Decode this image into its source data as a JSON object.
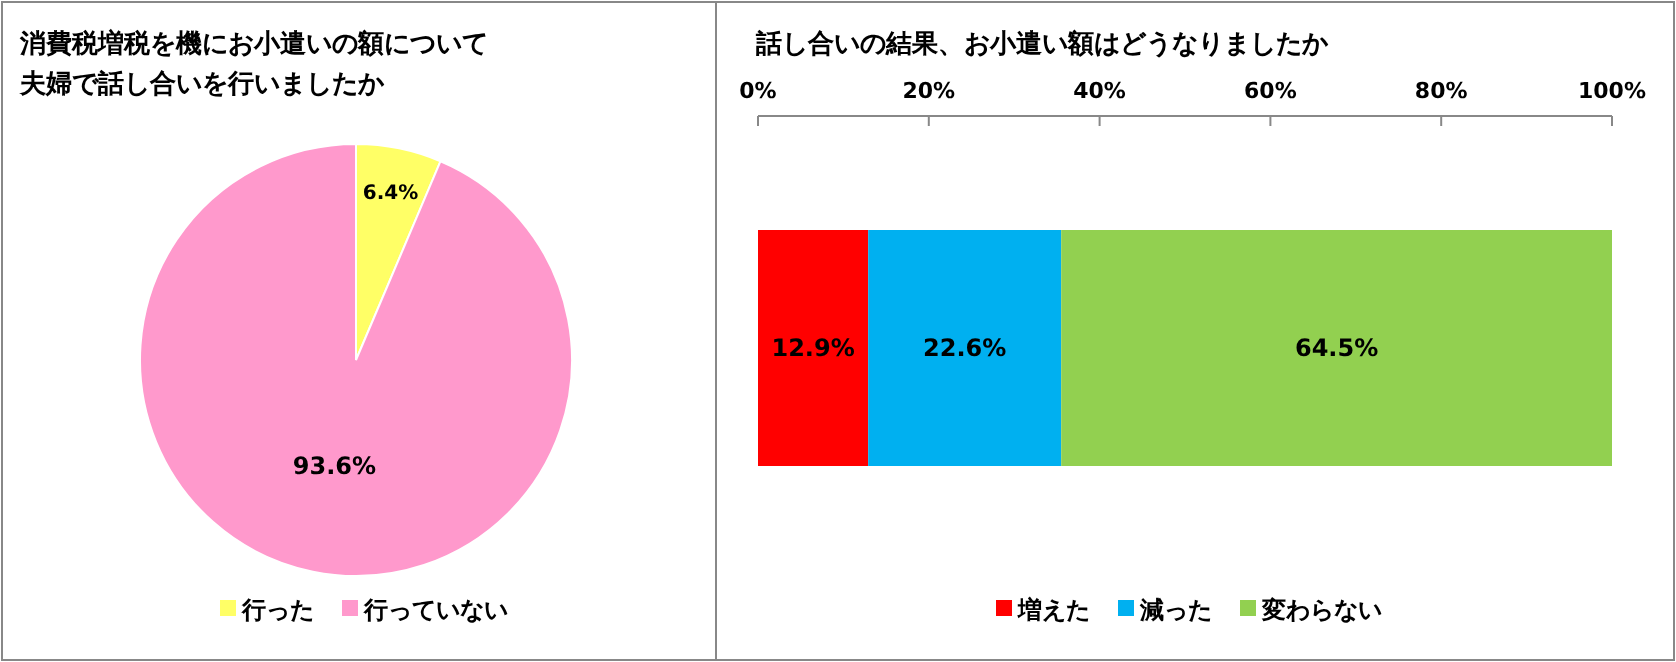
{
  "chart_data": [
    {
      "type": "pie",
      "title": "消費税増税を機にお小遣いの額について",
      "subtitle": "夫婦で話し合いを行いましたか",
      "categories": [
        "行った",
        "行っていない"
      ],
      "values": [
        6.4,
        93.6
      ],
      "colors": [
        "#ffff66",
        "#ff99cc"
      ],
      "value_labels": [
        "6.4%",
        "93.6%"
      ],
      "legend": "bottom"
    },
    {
      "type": "bar",
      "orientation": "horizontal",
      "stacked": true,
      "title": "話し合いの結果、お小遣い額はどうなりましたか",
      "categories": [
        null
      ],
      "xlim": [
        0,
        100
      ],
      "xticks": [
        {
          "value": 0,
          "label": "0%"
        },
        {
          "value": 20,
          "label": "20%"
        },
        {
          "value": 40,
          "label": "40%"
        },
        {
          "value": 60,
          "label": "60%"
        },
        {
          "value": 80,
          "label": "80%"
        },
        {
          "value": 100,
          "label": "100%"
        }
      ],
      "legend": "bottom",
      "series": [
        {
          "name": "増えた",
          "color": "#ff0000",
          "values": [
            12.9
          ],
          "value_labels": [
            "12.9%"
          ]
        },
        {
          "name": "減った",
          "color": "#00b0f0",
          "values": [
            22.6
          ],
          "value_labels": [
            "22.6%"
          ]
        },
        {
          "name": "変わらない",
          "color": "#92d050",
          "values": [
            64.5
          ],
          "value_labels": [
            "64.5%"
          ]
        }
      ]
    }
  ]
}
